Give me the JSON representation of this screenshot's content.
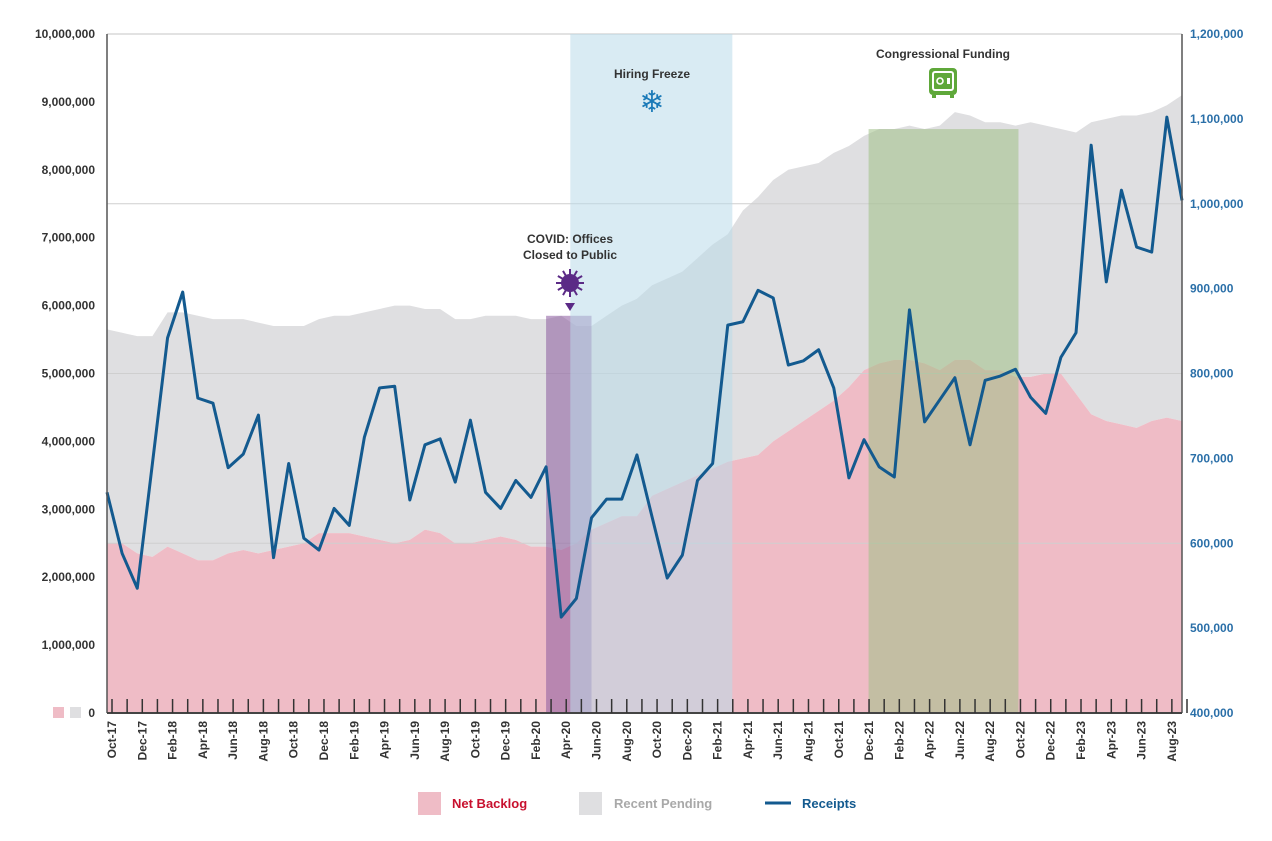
{
  "chart_data": {
    "type": "area+line",
    "x_months": [
      "Oct-17",
      "Nov-17",
      "Dec-17",
      "Jan-18",
      "Feb-18",
      "Mar-18",
      "Apr-18",
      "May-18",
      "Jun-18",
      "Jul-18",
      "Aug-18",
      "Sep-18",
      "Oct-18",
      "Nov-18",
      "Dec-18",
      "Jan-19",
      "Feb-19",
      "Mar-19",
      "Apr-19",
      "May-19",
      "Jun-19",
      "Jul-19",
      "Aug-19",
      "Sep-19",
      "Oct-19",
      "Nov-19",
      "Dec-19",
      "Jan-20",
      "Feb-20",
      "Mar-20",
      "Apr-20",
      "May-20",
      "Jun-20",
      "Jul-20",
      "Aug-20",
      "Sep-20",
      "Oct-20",
      "Nov-20",
      "Dec-20",
      "Jan-21",
      "Feb-21",
      "Mar-21",
      "Apr-21",
      "May-21",
      "Jun-21",
      "Jul-21",
      "Aug-21",
      "Sep-21",
      "Oct-21",
      "Nov-21",
      "Dec-21",
      "Jan-22",
      "Feb-22",
      "Mar-22",
      "Apr-22",
      "May-22",
      "Jun-22",
      "Jul-22",
      "Aug-22",
      "Sep-22",
      "Oct-22",
      "Nov-22",
      "Dec-22",
      "Jan-23",
      "Feb-23",
      "Mar-23",
      "Apr-23",
      "May-23",
      "Jun-23",
      "Jul-23",
      "Aug-23",
      "Sep-23"
    ],
    "x_tick_labels": [
      "Oct-17",
      "Dec-17",
      "Feb-18",
      "Apr-18",
      "Jun-18",
      "Aug-18",
      "Oct-18",
      "Dec-18",
      "Feb-19",
      "Apr-19",
      "Jun-19",
      "Aug-19",
      "Oct-19",
      "Dec-19",
      "Feb-20",
      "Apr-20",
      "Jun-20",
      "Aug-20",
      "Oct-20",
      "Dec-20",
      "Feb-21",
      "Apr-21",
      "Jun-21",
      "Aug-21",
      "Oct-21",
      "Dec-21",
      "Feb-22",
      "Apr-22",
      "Jun-22",
      "Aug-22",
      "Oct-22",
      "Dec-22",
      "Feb-23",
      "Apr-23",
      "Jun-23",
      "Aug-23"
    ],
    "left_axis": {
      "ylim": [
        0,
        10000000
      ],
      "ticks": [
        "0",
        "1,000,000",
        "2,000,000",
        "3,000,000",
        "4,000,000",
        "5,000,000",
        "6,000,000",
        "7,000,000",
        "8,000,000",
        "9,000,000",
        "10,000,000"
      ],
      "units_of_series": 1000000
    },
    "right_axis": {
      "ylim": [
        400000,
        1200000
      ],
      "ticks": [
        "400,000",
        "500,000",
        "600,000",
        "700,000",
        "800,000",
        "900,000",
        "1,000,000",
        "1,100,000",
        "1,200,000"
      ],
      "gridlines": [
        600000,
        800000,
        1000000
      ]
    },
    "series": [
      {
        "name": "Net Backlog",
        "type": "stacked-area",
        "axis": "left",
        "color": "#efbcc6",
        "values_millions": [
          2.5,
          2.5,
          2.35,
          2.3,
          2.45,
          2.35,
          2.25,
          2.25,
          2.35,
          2.4,
          2.35,
          2.4,
          2.45,
          2.5,
          2.65,
          2.65,
          2.65,
          2.6,
          2.55,
          2.5,
          2.55,
          2.7,
          2.65,
          2.5,
          2.5,
          2.55,
          2.6,
          2.55,
          2.45,
          2.45,
          2.4,
          2.5,
          2.7,
          2.8,
          2.9,
          2.9,
          3.2,
          3.3,
          3.4,
          3.5,
          3.6,
          3.7,
          3.75,
          3.8,
          4.0,
          4.15,
          4.3,
          4.45,
          4.6,
          4.8,
          5.05,
          5.15,
          5.2,
          5.2,
          5.15,
          5.05,
          5.2,
          5.2,
          5.05,
          5.05,
          4.95,
          4.95,
          5.0,
          5.0,
          4.7,
          4.4,
          4.3,
          4.25,
          4.2,
          4.3,
          4.35,
          4.3
        ]
      },
      {
        "name": "Recent Pending",
        "type": "stacked-area",
        "axis": "left",
        "color": "#dfdfe1",
        "values_millions": [
          3.15,
          3.1,
          3.2,
          3.25,
          3.45,
          3.55,
          3.6,
          3.55,
          3.45,
          3.4,
          3.4,
          3.3,
          3.25,
          3.2,
          3.15,
          3.2,
          3.2,
          3.3,
          3.4,
          3.5,
          3.45,
          3.25,
          3.3,
          3.3,
          3.3,
          3.3,
          3.25,
          3.3,
          3.35,
          3.35,
          3.45,
          3.2,
          3.0,
          3.05,
          3.1,
          3.2,
          3.1,
          3.1,
          3.1,
          3.2,
          3.3,
          3.35,
          3.65,
          3.8,
          3.85,
          3.85,
          3.75,
          3.65,
          3.65,
          3.55,
          3.45,
          3.45,
          3.4,
          3.45,
          3.45,
          3.6,
          3.65,
          3.6,
          3.65,
          3.65,
          3.7,
          3.75,
          3.65,
          3.6,
          3.85,
          4.3,
          4.45,
          4.55,
          4.6,
          4.55,
          4.6,
          4.8
        ]
      },
      {
        "name": "Receipts",
        "type": "line",
        "axis": "right",
        "color": "#135a8f",
        "values": [
          660000,
          588000,
          547000,
          694000,
          842000,
          896000,
          771000,
          765000,
          689000,
          705000,
          751000,
          583000,
          694000,
          606000,
          592000,
          641000,
          621000,
          725000,
          783000,
          785000,
          651000,
          716000,
          723000,
          672000,
          745000,
          660000,
          641000,
          674000,
          654000,
          690000,
          513000,
          535000,
          630000,
          652000,
          652000,
          704000,
          631000,
          559000,
          586000,
          674000,
          694000,
          857000,
          861000,
          898000,
          889000,
          810000,
          815000,
          828000,
          783000,
          677000,
          722000,
          690000,
          678000,
          875000,
          743000,
          769000,
          795000,
          716000,
          792000,
          797000,
          805000,
          772000,
          753000,
          819000,
          848000,
          1069000,
          908000,
          1016000,
          949000,
          943000,
          1102000,
          1004000
        ]
      }
    ],
    "bands": [
      {
        "label_lines": [
          "COVID: Offices",
          "Closed to Public"
        ],
        "icon": "virus-icon",
        "start_month_index": 29,
        "end_month_index": 32,
        "color": "#8a5a9e"
      },
      {
        "label_lines": [
          "Hiring Freeze"
        ],
        "icon": "snowflake-icon",
        "start_month_index": 30.6,
        "end_month_index": 41.3,
        "color": "#b9dbe9"
      },
      {
        "label_lines": [
          "Congressional Funding"
        ],
        "icon": "safe-icon",
        "start_month_index": 50.3,
        "end_month_index": 60.2,
        "color": "#9fbf86"
      }
    ],
    "legend": {
      "placement": "bottom-center",
      "items": [
        "Net Backlog",
        "Recent Pending",
        "Receipts"
      ]
    },
    "legend_colors": {
      "Net Backlog": "#c8102e",
      "Recent Pending": "#a9a9a9",
      "Receipts": "#135a8f"
    }
  }
}
